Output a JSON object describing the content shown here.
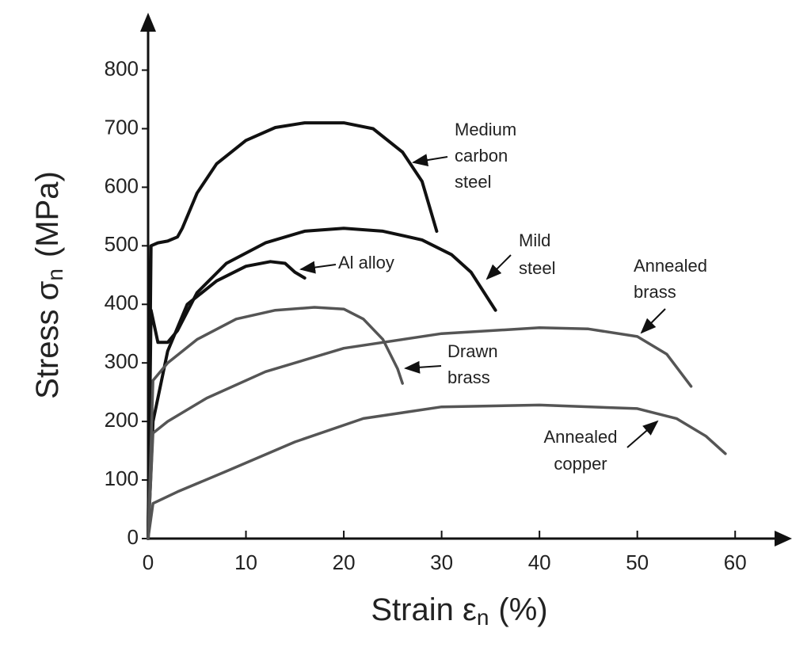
{
  "chart_data": {
    "type": "line",
    "y_label": "Stress σ",
    "y_label_sub": "n",
    "y_label_unit": "(MPa)",
    "x_label": "Strain ε",
    "x_label_sub": "n",
    "x_label_unit": "(%)",
    "xlim": [
      0,
      65
    ],
    "ylim": [
      0,
      890
    ],
    "xticks": [
      0,
      10,
      20,
      30,
      40,
      50,
      60
    ],
    "yticks": [
      0,
      100,
      200,
      300,
      400,
      500,
      600,
      700,
      800
    ],
    "series": [
      {
        "label": [
          "Medium",
          "carbon",
          "steel"
        ],
        "color": "#111111",
        "x": [
          0,
          0.3,
          1,
          2,
          3,
          3.5,
          5,
          7,
          10,
          13,
          16,
          20,
          23,
          26,
          28,
          29.5
        ],
        "values": [
          0,
          500,
          505,
          508,
          515,
          530,
          590,
          640,
          680,
          702,
          710,
          710,
          700,
          660,
          610,
          525
        ]
      },
      {
        "label": [
          "Mild",
          "steel"
        ],
        "color": "#111111",
        "x": [
          0,
          0.3,
          1,
          2,
          3,
          5,
          8,
          12,
          16,
          20,
          24,
          28,
          31,
          33,
          35.5
        ],
        "values": [
          0,
          390,
          335,
          335,
          355,
          420,
          470,
          505,
          525,
          530,
          525,
          510,
          485,
          455,
          390
        ]
      },
      {
        "label": [
          "Al alloy"
        ],
        "color": "#111111",
        "x": [
          0,
          0.5,
          2,
          4,
          7,
          10,
          12.5,
          14,
          15,
          16
        ],
        "values": [
          0,
          200,
          320,
          400,
          440,
          465,
          473,
          470,
          455,
          445
        ]
      },
      {
        "label": [
          "Drawn",
          "brass"
        ],
        "color": "#555555",
        "x": [
          0,
          0.5,
          2,
          5,
          9,
          13,
          17,
          20,
          22,
          24,
          25.5,
          26
        ],
        "values": [
          0,
          270,
          300,
          340,
          375,
          390,
          395,
          392,
          375,
          340,
          290,
          265
        ]
      },
      {
        "label": [
          "Annealed",
          "brass"
        ],
        "color": "#555555",
        "x": [
          0,
          0.5,
          2,
          6,
          12,
          20,
          30,
          40,
          45,
          50,
          53,
          55.5
        ],
        "values": [
          0,
          180,
          200,
          240,
          285,
          325,
          350,
          360,
          358,
          345,
          315,
          260
        ]
      },
      {
        "label": [
          "Annealed",
          "copper"
        ],
        "color": "#555555",
        "x": [
          0,
          0.5,
          3,
          8,
          15,
          22,
          30,
          40,
          50,
          54,
          57,
          59
        ],
        "values": [
          0,
          60,
          80,
          115,
          165,
          205,
          225,
          228,
          222,
          205,
          175,
          145
        ]
      }
    ]
  }
}
